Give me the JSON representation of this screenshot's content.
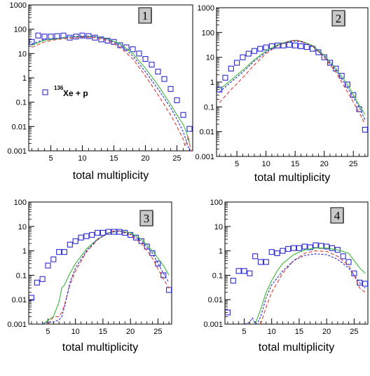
{
  "colors": {
    "points": "#2a2ad0",
    "green_curve": "#3cb83c",
    "red_curve": "#e03a3a",
    "blue_curve": "#2a2ad0",
    "label_box_fill": "#c8c8c8"
  },
  "chart_data": [
    {
      "panel_label": "1",
      "type": "scatter",
      "xlabel": "total multiplicity",
      "ylabel": "",
      "xlim": [
        1.5,
        27.5
      ],
      "ylim": [
        0.001,
        1000
      ],
      "yscale": "log",
      "grid": false,
      "x_ticks": [
        "5",
        "10",
        "15",
        "20",
        "25"
      ],
      "y_ticks": [
        "0.001",
        "0.01",
        "0.1",
        "1",
        "10",
        "100",
        "1000"
      ],
      "annotation": {
        "superscript": "136",
        "text": "Xe + p"
      },
      "series": [
        {
          "style": "open-square",
          "color": "#2a2ad0",
          "x": [
            2,
            3,
            4,
            5,
            6,
            7,
            8,
            9,
            10,
            11,
            12,
            13,
            14,
            15,
            16,
            17,
            18,
            19,
            20,
            21,
            22,
            23,
            24,
            25,
            26,
            27
          ],
          "y": [
            30,
            55,
            50,
            50,
            52,
            55,
            45,
            50,
            55,
            52,
            45,
            38,
            34,
            30,
            22,
            18,
            15,
            10,
            6,
            3.5,
            1.8,
            0.9,
            0.35,
            0.12,
            0.03,
            0.008
          ]
        },
        {
          "style": "solid",
          "color": "#3cb83c",
          "x": [
            2,
            4,
            6,
            8,
            10,
            11,
            12,
            14,
            16,
            18,
            20,
            22,
            24,
            25,
            26,
            26.5,
            27
          ],
          "y": [
            22,
            35,
            40,
            48,
            50,
            52,
            50,
            40,
            25,
            10,
            2.5,
            0.5,
            0.08,
            0.03,
            0.012,
            0.006,
            0.002
          ]
        },
        {
          "style": "dashed",
          "color": "#e03a3a",
          "x": [
            2,
            4,
            6,
            8,
            10,
            12,
            14,
            16,
            18,
            20,
            22,
            24,
            25,
            26,
            26.3,
            26.8,
            27.2
          ],
          "y": [
            18,
            30,
            38,
            42,
            48,
            45,
            35,
            18,
            6,
            1.2,
            0.2,
            0.03,
            0.01,
            0.003,
            0.0015,
            0.004,
            0.001
          ]
        },
        {
          "style": "dotted",
          "color": "#2a2ad0",
          "x": [
            2,
            4,
            6,
            8,
            10,
            12,
            14,
            16,
            18,
            20,
            22,
            24,
            25,
            26,
            26.5,
            27
          ],
          "y": [
            25,
            38,
            42,
            48,
            52,
            50,
            38,
            22,
            8,
            1.8,
            0.35,
            0.06,
            0.02,
            0.006,
            0.0025,
            0.001
          ]
        }
      ]
    },
    {
      "panel_label": "2",
      "type": "scatter",
      "xlabel": "total multiplicity",
      "ylabel": "",
      "xlim": [
        1.5,
        27.5
      ],
      "ylim": [
        0.001,
        1000
      ],
      "yscale": "log",
      "grid": false,
      "x_ticks": [
        "5",
        "10",
        "15",
        "20",
        "25"
      ],
      "y_ticks": [
        "0.001",
        "0.01",
        "0.1",
        "1",
        "10",
        "100",
        "1000"
      ],
      "series": [
        {
          "style": "open-square",
          "color": "#2a2ad0",
          "x": [
            2,
            3,
            4,
            5,
            6,
            7,
            8,
            9,
            10,
            11,
            12,
            13,
            14,
            15,
            16,
            17,
            18,
            19,
            20,
            21,
            22,
            23,
            24,
            25,
            26,
            27
          ],
          "y": [
            0.5,
            1.5,
            3.5,
            6,
            10,
            14,
            18,
            22,
            25,
            28,
            30,
            30,
            32,
            30,
            28,
            26,
            22,
            16,
            10,
            6,
            3.5,
            1.8,
            0.8,
            0.3,
            0.08,
            0.012
          ]
        },
        {
          "style": "solid",
          "color": "#3cb83c",
          "x": [
            2,
            4,
            6,
            8,
            10,
            12,
            14,
            15,
            16,
            18,
            20,
            22,
            24,
            26,
            27
          ],
          "y": [
            0.5,
            1.2,
            3,
            8,
            18,
            32,
            45,
            48,
            45,
            30,
            12,
            3.5,
            0.8,
            0.12,
            0.05
          ]
        },
        {
          "style": "dashed",
          "color": "#e03a3a",
          "x": [
            2,
            4,
            6,
            8,
            10,
            12,
            14,
            15,
            16,
            18,
            20,
            22,
            24,
            26,
            27
          ],
          "y": [
            0.15,
            0.5,
            1.5,
            5,
            14,
            30,
            45,
            50,
            45,
            28,
            10,
            2.5,
            0.4,
            0.06,
            0.02
          ]
        },
        {
          "style": "dotted",
          "color": "#2a2ad0",
          "x": [
            2,
            4,
            6,
            8,
            10,
            12,
            14,
            15,
            16,
            18,
            20,
            22,
            24,
            26,
            27
          ],
          "y": [
            0.4,
            1,
            2.5,
            7,
            16,
            30,
            42,
            45,
            42,
            28,
            11,
            3,
            0.6,
            0.1,
            0.03
          ]
        }
      ]
    },
    {
      "panel_label": "3",
      "type": "scatter",
      "xlabel": "total multiplicity",
      "ylabel": "",
      "xlim": [
        1.5,
        27.5
      ],
      "ylim": [
        0.001,
        100
      ],
      "yscale": "log",
      "grid": false,
      "x_ticks": [
        "5",
        "10",
        "15",
        "20",
        "25"
      ],
      "y_ticks": [
        "0.001",
        "0.01",
        "0.1",
        "1",
        "10",
        "100"
      ],
      "series": [
        {
          "style": "open-square",
          "color": "#2a2ad0",
          "x": [
            2,
            3,
            4,
            5,
            6,
            7,
            8,
            9,
            10,
            11,
            12,
            13,
            14,
            15,
            16,
            17,
            18,
            19,
            20,
            21,
            22,
            23,
            24,
            25,
            26,
            27
          ],
          "y": [
            0.012,
            0.05,
            0.07,
            0.25,
            0.45,
            0.9,
            0.9,
            1.8,
            2.5,
            3.5,
            4,
            4.5,
            5.5,
            5.5,
            6,
            6,
            6,
            5.5,
            4.5,
            3.5,
            2.5,
            1.5,
            0.8,
            0.3,
            0.1,
            0.025
          ]
        },
        {
          "style": "solid",
          "color": "#3cb83c",
          "x": [
            4,
            6,
            7,
            7.5,
            8,
            9,
            10,
            12,
            14,
            16,
            18,
            20,
            22,
            24,
            26,
            27
          ],
          "y": [
            0.001,
            0.002,
            0.008,
            0.03,
            0.04,
            0.12,
            0.3,
            1.2,
            3,
            5.5,
            6.5,
            5.5,
            3,
            1,
            0.25,
            0.1
          ]
        },
        {
          "style": "dashed",
          "color": "#e03a3a",
          "x": [
            5,
            6,
            7,
            7.5,
            8,
            9,
            10,
            12,
            14,
            16,
            17,
            18,
            20,
            22,
            24,
            26,
            27
          ],
          "y": [
            0.001,
            0.002,
            0.002,
            0.003,
            0.006,
            0.04,
            0.15,
            0.9,
            2.8,
            5.5,
            6.5,
            6.5,
            4.5,
            2,
            0.5,
            0.07,
            0.03
          ]
        },
        {
          "style": "dotted",
          "color": "#2a2ad0",
          "x": [
            4,
            5,
            6,
            7,
            7.5,
            8,
            9,
            10,
            12,
            14,
            16,
            18,
            20,
            22,
            24,
            26,
            27
          ],
          "y": [
            0.001,
            0.0012,
            0.0012,
            0.0015,
            0.002,
            0.005,
            0.05,
            0.2,
            1,
            3,
            5.5,
            6.5,
            5,
            2.5,
            0.8,
            0.12,
            0.05
          ]
        }
      ]
    },
    {
      "panel_label": "4",
      "type": "scatter",
      "xlabel": "total multiplicity",
      "ylabel": "",
      "xlim": [
        1.5,
        27.5
      ],
      "ylim": [
        0.001,
        100
      ],
      "yscale": "log",
      "grid": false,
      "x_ticks": [
        "5",
        "10",
        "15",
        "20",
        "25"
      ],
      "y_ticks": [
        "0.001",
        "0.01",
        "0.1",
        "1",
        "10",
        "100"
      ],
      "series": [
        {
          "style": "open-square",
          "color": "#2a2ad0",
          "x": [
            2,
            3,
            4,
            5,
            6,
            7,
            8,
            9,
            10,
            11,
            12,
            13,
            14,
            15,
            16,
            17,
            18,
            19,
            20,
            21,
            22,
            23,
            24,
            25,
            26,
            27
          ],
          "y": [
            0.003,
            0.06,
            0.15,
            0.15,
            0.12,
            0.6,
            0.35,
            0.35,
            0.9,
            0.8,
            1,
            1.2,
            1.3,
            1.3,
            1.5,
            1.4,
            1.7,
            1.6,
            1.5,
            1.3,
            1.1,
            0.6,
            0.35,
            0.12,
            0.05,
            0.045
          ]
        },
        {
          "style": "solid",
          "color": "#3cb83c",
          "x": [
            7,
            8,
            9,
            10,
            11,
            12,
            14,
            16,
            18,
            20,
            22,
            24,
            26,
            27
          ],
          "y": [
            0.001,
            0.004,
            0.02,
            0.06,
            0.15,
            0.3,
            0.7,
            1.1,
            1.3,
            1.3,
            1.1,
            0.8,
            0.2,
            0.12
          ]
        },
        {
          "style": "dashed",
          "color": "#e03a3a",
          "x": [
            8,
            9,
            10,
            12,
            14,
            16,
            18,
            20,
            22,
            24,
            25,
            26,
            27
          ],
          "y": [
            0.001,
            0.005,
            0.02,
            0.12,
            0.4,
            0.8,
            1,
            0.95,
            0.6,
            0.25,
            0.1,
            0.03,
            0.02
          ]
        },
        {
          "style": "dotted",
          "color": "#2a2ad0",
          "x": [
            5,
            6,
            6.5,
            7,
            7.5,
            8,
            9,
            10,
            12,
            14,
            16,
            18,
            20,
            22,
            24,
            26,
            27
          ],
          "y": [
            0.001,
            0.0012,
            0.0018,
            0.001,
            0.0012,
            0.002,
            0.012,
            0.04,
            0.15,
            0.4,
            0.65,
            0.75,
            0.7,
            0.45,
            0.2,
            0.05,
            0.03
          ]
        }
      ]
    }
  ]
}
